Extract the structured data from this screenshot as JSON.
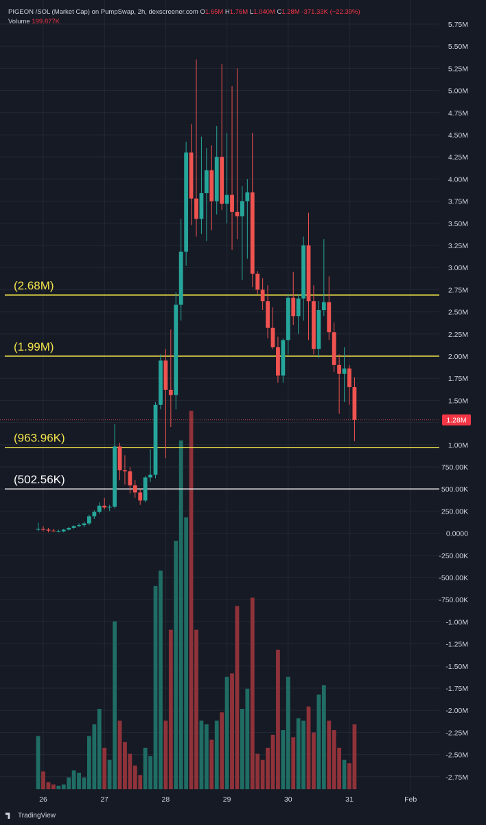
{
  "header": {
    "title": "PIGEON /SOL (Market Cap) on PumpSwap, 2h, dexscreener.com",
    "ohlc": [
      {
        "label": "O",
        "value": "1.65M"
      },
      {
        "label": "H",
        "value": "1.76M"
      },
      {
        "label": "L",
        "value": "1.040M"
      },
      {
        "label": "C",
        "value": "1.28M"
      }
    ],
    "change": "-371.33K (−22.39%)",
    "volume_label": "Volume",
    "volume_value": "199.877K"
  },
  "footer": {
    "brand": "TradingView"
  },
  "colors": {
    "background": "#161a25",
    "up": "#26a69a",
    "down": "#ef5350",
    "up_volume": "#1f6d64",
    "down_volume": "#8f3239",
    "level_yellow": "#f2e34b",
    "level_white": "#ffffff",
    "grid": "#242834",
    "axis_text": "#d1d4dc",
    "price_tag": "#f23645"
  },
  "chart_data": {
    "type": "candlestick",
    "y_axis_ticks": [
      "5.75M",
      "5.50M",
      "5.25M",
      "5.00M",
      "4.75M",
      "4.50M",
      "4.25M",
      "4.00M",
      "3.75M",
      "3.50M",
      "3.25M",
      "3.00M",
      "2.75M",
      "2.50M",
      "2.25M",
      "2.00M",
      "1.75M",
      "1.50M",
      "1.25M",
      "1.00M",
      "750.00K",
      "500.00K",
      "250.00K",
      "0.0000",
      "-250.00K",
      "-500.00K",
      "-750.00K",
      "-1.00M",
      "-1.25M",
      "-1.50M",
      "-1.75M",
      "-2.00M",
      "-2.25M",
      "-2.50M",
      "-2.75M"
    ],
    "ylim": [
      -2.9,
      5.85
    ],
    "x_axis_ticks": [
      {
        "label": "26",
        "t": 0
      },
      {
        "label": "27",
        "t": 12
      },
      {
        "label": "28",
        "t": 24
      },
      {
        "label": "29",
        "t": 36
      },
      {
        "label": "30",
        "t": 48
      },
      {
        "label": "31",
        "t": 60
      },
      {
        "label": "Feb",
        "t": 72
      }
    ],
    "x_start": -1.5,
    "x_end": 72.5,
    "current_price": {
      "label": "1.28M",
      "value": 1.28
    },
    "levels": [
      {
        "label": "(2.68M)",
        "value": 2.69,
        "color": "yellow"
      },
      {
        "label": "(1.99M)",
        "value": 2.0,
        "color": "yellow"
      },
      {
        "label": "(963.96K)",
        "value": 0.97,
        "color": "yellow"
      },
      {
        "label": "(502.56K)",
        "value": 0.5,
        "color": "white"
      }
    ],
    "candles": [
      {
        "t": -1,
        "o": 0.04,
        "h": 0.12,
        "l": 0.02,
        "c": 0.05,
        "v": 0.45
      },
      {
        "t": 0,
        "o": 0.05,
        "h": 0.08,
        "l": 0.02,
        "c": 0.04,
        "v": 0.15
      },
      {
        "t": 1,
        "o": 0.04,
        "h": 0.06,
        "l": 0.01,
        "c": 0.03,
        "v": 0.06
      },
      {
        "t": 2,
        "o": 0.03,
        "h": 0.05,
        "l": 0.02,
        "c": 0.02,
        "v": 0.04
      },
      {
        "t": 3,
        "o": 0.02,
        "h": 0.04,
        "l": 0.01,
        "c": 0.02,
        "v": 0.03
      },
      {
        "t": 4,
        "o": 0.02,
        "h": 0.05,
        "l": 0.01,
        "c": 0.04,
        "v": 0.04
      },
      {
        "t": 5,
        "o": 0.04,
        "h": 0.07,
        "l": 0.03,
        "c": 0.06,
        "v": 0.1
      },
      {
        "t": 6,
        "o": 0.06,
        "h": 0.09,
        "l": 0.05,
        "c": 0.08,
        "v": 0.16
      },
      {
        "t": 7,
        "o": 0.08,
        "h": 0.11,
        "l": 0.07,
        "c": 0.09,
        "v": 0.14
      },
      {
        "t": 8,
        "o": 0.09,
        "h": 0.13,
        "l": 0.07,
        "c": 0.11,
        "v": 0.1
      },
      {
        "t": 9,
        "o": 0.11,
        "h": 0.21,
        "l": 0.09,
        "c": 0.19,
        "v": 0.45
      },
      {
        "t": 10,
        "o": 0.19,
        "h": 0.26,
        "l": 0.16,
        "c": 0.24,
        "v": 0.55
      },
      {
        "t": 11,
        "o": 0.24,
        "h": 0.35,
        "l": 0.22,
        "c": 0.31,
        "v": 0.68
      },
      {
        "t": 12,
        "o": 0.31,
        "h": 0.4,
        "l": 0.27,
        "c": 0.29,
        "v": 0.35
      },
      {
        "t": 13,
        "o": 0.29,
        "h": 0.32,
        "l": 0.25,
        "c": 0.3,
        "v": 0.25
      },
      {
        "t": 14,
        "o": 0.3,
        "h": 1.23,
        "l": 0.28,
        "c": 0.98,
        "v": 1.42
      },
      {
        "t": 15,
        "o": 0.98,
        "h": 1.02,
        "l": 0.6,
        "c": 0.71,
        "v": 0.58
      },
      {
        "t": 16,
        "o": 0.71,
        "h": 0.88,
        "l": 0.55,
        "c": 0.7,
        "v": 0.4
      },
      {
        "t": 17,
        "o": 0.7,
        "h": 0.75,
        "l": 0.45,
        "c": 0.54,
        "v": 0.3
      },
      {
        "t": 18,
        "o": 0.54,
        "h": 0.6,
        "l": 0.4,
        "c": 0.46,
        "v": 0.2
      },
      {
        "t": 19,
        "o": 0.46,
        "h": 0.5,
        "l": 0.32,
        "c": 0.37,
        "v": 0.12
      },
      {
        "t": 20,
        "o": 0.37,
        "h": 0.65,
        "l": 0.35,
        "c": 0.63,
        "v": 0.35
      },
      {
        "t": 21,
        "o": 0.63,
        "h": 0.95,
        "l": 0.58,
        "c": 0.66,
        "v": 0.28
      },
      {
        "t": 22,
        "o": 0.66,
        "h": 1.48,
        "l": 0.62,
        "c": 1.45,
        "v": 1.72
      },
      {
        "t": 23,
        "o": 1.45,
        "h": 2.02,
        "l": 1.4,
        "c": 1.95,
        "v": 1.85
      },
      {
        "t": 24,
        "o": 1.95,
        "h": 2.08,
        "l": 0.85,
        "c": 1.62,
        "v": 0.58
      },
      {
        "t": 25,
        "o": 1.62,
        "h": 2.3,
        "l": 1.2,
        "c": 1.56,
        "v": 1.35
      },
      {
        "t": 26,
        "o": 1.56,
        "h": 2.72,
        "l": 1.4,
        "c": 2.58,
        "v": 2.1
      },
      {
        "t": 27,
        "o": 2.58,
        "h": 3.55,
        "l": 2.4,
        "c": 3.18,
        "v": 2.95
      },
      {
        "t": 28,
        "o": 3.18,
        "h": 4.42,
        "l": 3.02,
        "c": 4.3,
        "v": 2.3
      },
      {
        "t": 29,
        "o": 4.3,
        "h": 4.62,
        "l": 3.48,
        "c": 3.78,
        "v": 3.2
      },
      {
        "t": 30,
        "o": 3.78,
        "h": 5.35,
        "l": 3.35,
        "c": 3.55,
        "v": 1.35
      },
      {
        "t": 31,
        "o": 3.55,
        "h": 4.48,
        "l": 3.38,
        "c": 3.84,
        "v": 0.58
      },
      {
        "t": 32,
        "o": 3.84,
        "h": 4.35,
        "l": 3.3,
        "c": 4.1,
        "v": 0.55
      },
      {
        "t": 33,
        "o": 4.1,
        "h": 4.38,
        "l": 3.42,
        "c": 3.75,
        "v": 0.42
      },
      {
        "t": 34,
        "o": 3.75,
        "h": 4.6,
        "l": 3.6,
        "c": 4.25,
        "v": 0.58
      },
      {
        "t": 35,
        "o": 4.25,
        "h": 5.3,
        "l": 3.65,
        "c": 3.72,
        "v": 0.65
      },
      {
        "t": 36,
        "o": 3.72,
        "h": 4.52,
        "l": 3.5,
        "c": 3.82,
        "v": 0.95
      },
      {
        "t": 37,
        "o": 3.82,
        "h": 5.05,
        "l": 3.2,
        "c": 3.63,
        "v": 0.98
      },
      {
        "t": 38,
        "o": 3.63,
        "h": 5.25,
        "l": 3.32,
        "c": 3.58,
        "v": 1.55
      },
      {
        "t": 39,
        "o": 3.58,
        "h": 3.92,
        "l": 2.86,
        "c": 3.75,
        "v": 0.68
      },
      {
        "t": 40,
        "o": 3.75,
        "h": 4.0,
        "l": 3.1,
        "c": 3.85,
        "v": 0.85
      },
      {
        "t": 41,
        "o": 3.85,
        "h": 4.52,
        "l": 2.78,
        "c": 2.93,
        "v": 1.62
      },
      {
        "t": 42,
        "o": 2.93,
        "h": 2.96,
        "l": 2.7,
        "c": 2.75,
        "v": 0.3
      },
      {
        "t": 43,
        "o": 2.75,
        "h": 2.88,
        "l": 2.52,
        "c": 2.62,
        "v": 0.25
      },
      {
        "t": 44,
        "o": 2.62,
        "h": 2.8,
        "l": 2.2,
        "c": 2.32,
        "v": 0.35
      },
      {
        "t": 45,
        "o": 2.32,
        "h": 2.55,
        "l": 2.08,
        "c": 2.1,
        "v": 0.46
      },
      {
        "t": 46,
        "o": 2.1,
        "h": 2.22,
        "l": 1.7,
        "c": 1.78,
        "v": 1.18
      },
      {
        "t": 47,
        "o": 1.78,
        "h": 2.2,
        "l": 1.7,
        "c": 2.18,
        "v": 0.5
      },
      {
        "t": 48,
        "o": 2.18,
        "h": 2.7,
        "l": 2.02,
        "c": 2.66,
        "v": 0.95
      },
      {
        "t": 49,
        "o": 2.66,
        "h": 2.95,
        "l": 2.35,
        "c": 2.45,
        "v": 0.44
      },
      {
        "t": 50,
        "o": 2.45,
        "h": 2.7,
        "l": 2.25,
        "c": 2.65,
        "v": 0.6
      },
      {
        "t": 51,
        "o": 2.65,
        "h": 3.35,
        "l": 2.4,
        "c": 3.25,
        "v": 0.58
      },
      {
        "t": 52,
        "o": 3.25,
        "h": 3.62,
        "l": 2.18,
        "c": 2.62,
        "v": 0.7
      },
      {
        "t": 53,
        "o": 2.62,
        "h": 2.8,
        "l": 2.02,
        "c": 2.08,
        "v": 0.48
      },
      {
        "t": 54,
        "o": 2.08,
        "h": 2.62,
        "l": 1.98,
        "c": 2.52,
        "v": 0.8
      },
      {
        "t": 55,
        "o": 2.52,
        "h": 3.32,
        "l": 2.45,
        "c": 2.61,
        "v": 0.88
      },
      {
        "t": 56,
        "o": 2.61,
        "h": 2.9,
        "l": 2.18,
        "c": 2.27,
        "v": 0.58
      },
      {
        "t": 57,
        "o": 2.27,
        "h": 2.38,
        "l": 1.82,
        "c": 1.9,
        "v": 0.5
      },
      {
        "t": 58,
        "o": 1.9,
        "h": 2.02,
        "l": 1.35,
        "c": 1.8,
        "v": 0.35
      },
      {
        "t": 59,
        "o": 1.8,
        "h": 2.1,
        "l": 1.48,
        "c": 1.86,
        "v": 0.25
      },
      {
        "t": 60,
        "o": 1.86,
        "h": 1.9,
        "l": 1.45,
        "c": 1.65,
        "v": 0.22
      },
      {
        "t": 61,
        "o": 1.65,
        "h": 1.76,
        "l": 1.04,
        "c": 1.28,
        "v": 0.55
      }
    ]
  }
}
